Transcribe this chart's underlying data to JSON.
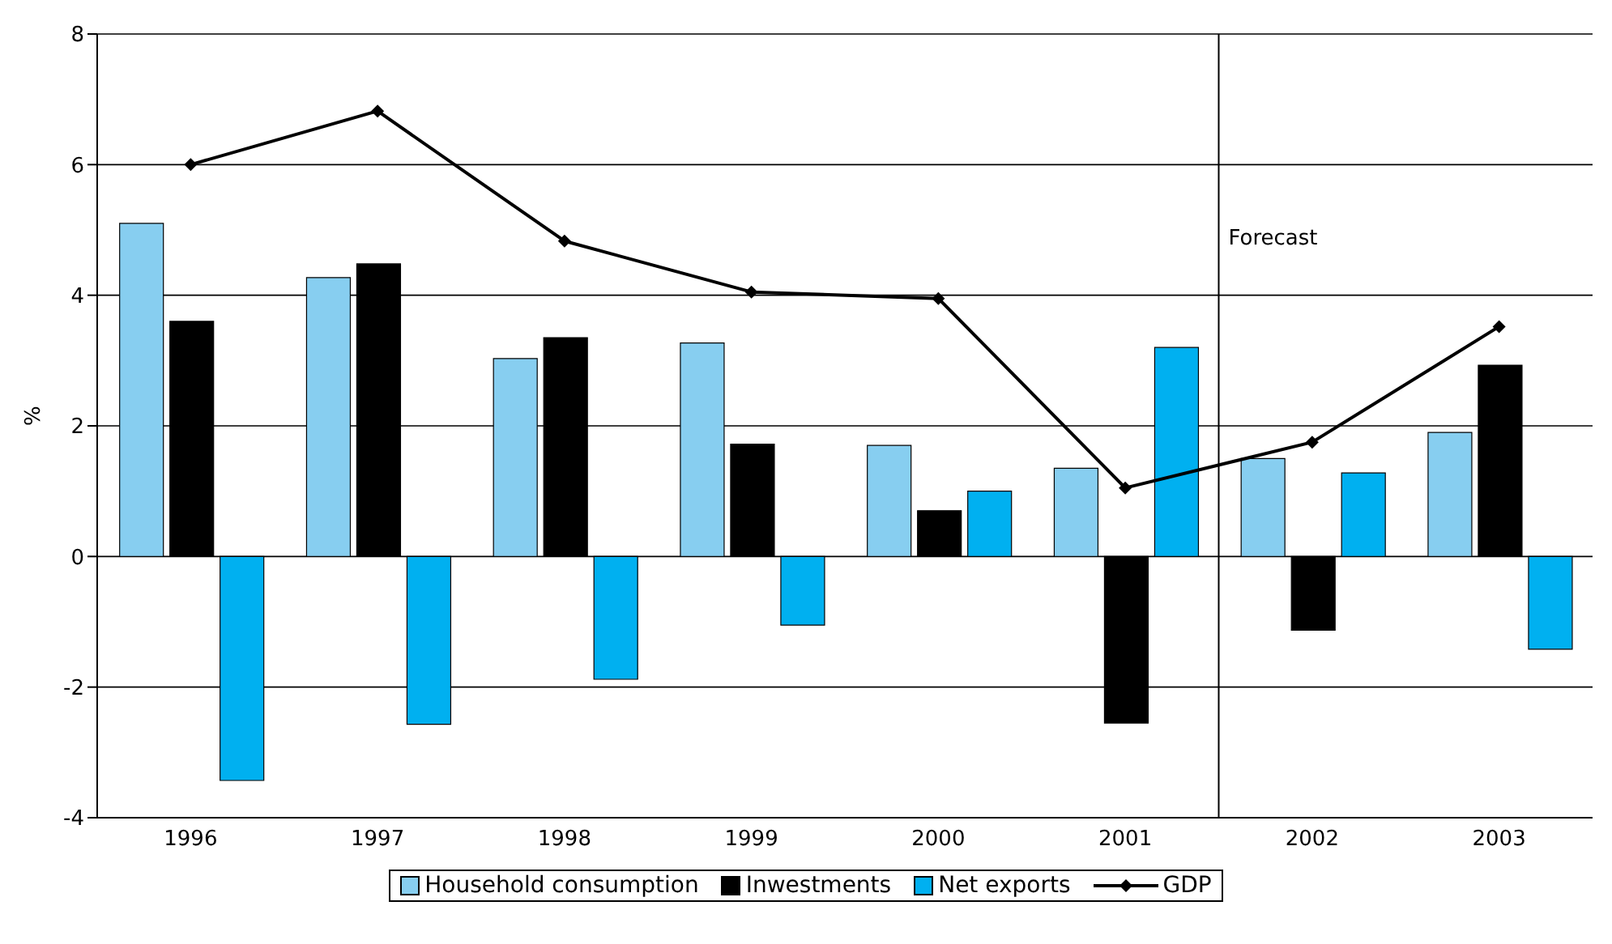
{
  "chart_data": {
    "type": "bar",
    "ylabel": "%",
    "categories": [
      "1996",
      "1997",
      "1998",
      "1999",
      "2000",
      "2001",
      "2002",
      "2003"
    ],
    "series": [
      {
        "name": "Household consumption",
        "color": "#87cef0",
        "values": [
          5.1,
          4.27,
          3.03,
          3.27,
          1.7,
          1.35,
          1.5,
          1.9
        ]
      },
      {
        "name": "Inwestments",
        "color": "#000000",
        "values": [
          3.6,
          4.48,
          3.35,
          1.72,
          0.7,
          -2.55,
          -1.13,
          2.93
        ]
      },
      {
        "name": "Net exports",
        "color": "#00b0f0",
        "values": [
          -3.43,
          -2.57,
          -1.88,
          -1.05,
          1.0,
          3.2,
          1.28,
          -1.42
        ]
      },
      {
        "name": "GDP",
        "type": "line",
        "color": "#000000",
        "values": [
          6.0,
          6.82,
          4.83,
          4.05,
          3.95,
          1.05,
          1.75,
          3.52
        ]
      }
    ],
    "ylim": [
      -4,
      8
    ],
    "yticks": [
      -4,
      -2,
      0,
      2,
      4,
      6,
      8
    ],
    "grid": "y",
    "legend": "bottom",
    "marker": "diamond",
    "line_style": "solid",
    "ref_lines": [
      {
        "axis": "x",
        "value": "2002",
        "label": "Forecast"
      }
    ]
  }
}
